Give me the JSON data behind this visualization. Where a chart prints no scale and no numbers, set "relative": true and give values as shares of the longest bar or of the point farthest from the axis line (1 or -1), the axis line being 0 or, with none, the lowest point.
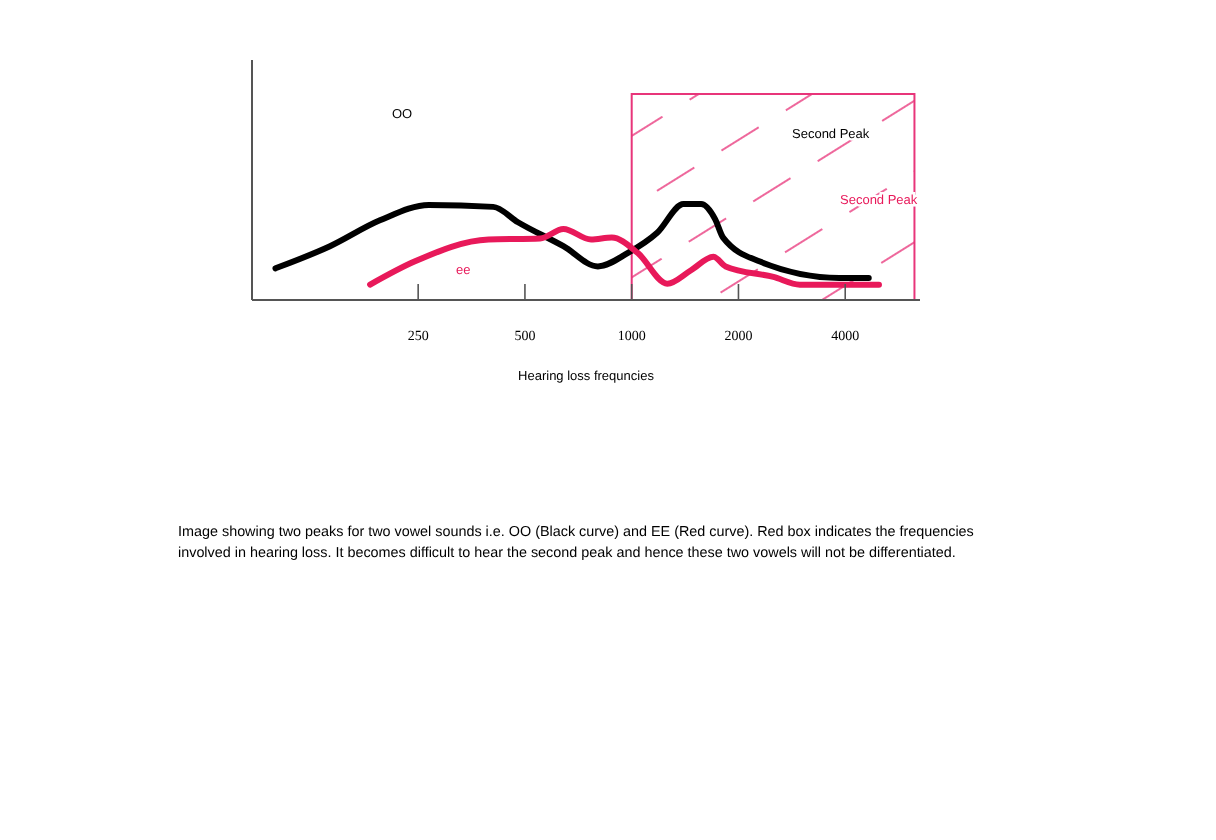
{
  "chart_data": {
    "type": "line",
    "relative": true,
    "log": "x",
    "xlabel": "Hearing loss frequncies",
    "xlim": [
      85,
      6500
    ],
    "xticks": [
      250,
      500,
      1000,
      2000,
      4000
    ],
    "grid": false,
    "marker": "none",
    "line_style": "solid",
    "series": [
      {
        "color": "#000000",
        "x": [
          99,
          141,
          195,
          268,
          407,
          478,
          642,
          803,
          976,
          1180,
          1400,
          1570,
          1720,
          1810,
          2300,
          3850,
          4660
        ],
        "values": [
          0.33,
          0.56,
          0.83,
          0.99,
          0.97,
          0.81,
          0.56,
          0.35,
          0.49,
          0.7,
          1,
          1,
          0.84,
          0.65,
          0.4,
          0.23,
          0.23
        ]
      },
      {
        "color": "#e8195a",
        "x": [
          183,
          244,
          395,
          552,
          642,
          768,
          879,
          1040,
          1260,
          1470,
          1700,
          1840,
          2510,
          2980,
          4980
        ],
        "values": [
          0.16,
          0.4,
          0.63,
          0.64,
          0.74,
          0.63,
          0.65,
          0.49,
          0.17,
          0.31,
          0.45,
          0.35,
          0.24,
          0.16,
          0.16
        ]
      }
    ],
    "bands": [
      {
        "axis": "x",
        "from": 1000,
        "to": 6270,
        "color": "#e8357a"
      }
    ],
    "annotations": [
      "OO",
      "ee",
      "Second Peak",
      "Second Peak",
      "Image showing two peaks for two vowel sounds i.e. OO (Black curve) and EE (Red curve).  Red box indicates the frequencies involved in hearing loss.  It becomes difficult to hear the second peak and hence these two vowels will not be differentiated."
    ]
  }
}
